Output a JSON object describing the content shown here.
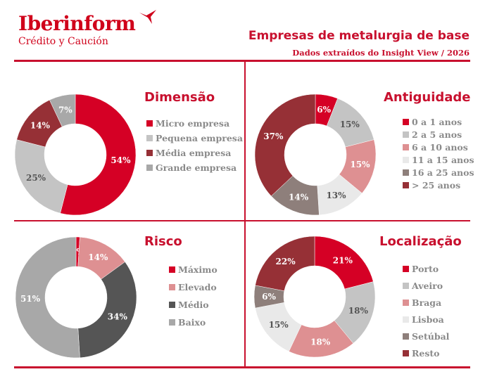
{
  "brand": {
    "name": "Iberinform",
    "subtitle": "Crédito y Caución",
    "color": "#d0021b"
  },
  "header": {
    "title": "Empresas de metalurgia de base",
    "subtitle": "Dados extraídos do Insight View / 2026"
  },
  "chart_data": [
    {
      "id": "dimensao",
      "type": "pie",
      "donut": true,
      "title": "Dimensão",
      "categories": [
        "Micro empresa",
        "Pequena empresa",
        "Média empresa",
        "Grande empresa"
      ],
      "values": [
        54,
        25,
        14,
        7
      ],
      "labels": [
        "54%",
        "25%",
        "14%",
        "7%"
      ],
      "colors": [
        "#d50025",
        "#c4c4c4",
        "#963036",
        "#a8a8a8"
      ],
      "label_colors": [
        "#ffffff",
        "#555555",
        "#ffffff",
        "#ffffff"
      ],
      "legend": "right"
    },
    {
      "id": "antiguidade",
      "type": "pie",
      "donut": true,
      "title": "Antiguidade",
      "categories": [
        "0 a 1 anos",
        "2 a 5 anos",
        "6 a 10 anos",
        "11 a 15 anos",
        "16 a 25 anos",
        "> 25 anos"
      ],
      "values": [
        6,
        15,
        15,
        13,
        14,
        37
      ],
      "labels": [
        "6%",
        "15%",
        "15%",
        "13%",
        "14%",
        "37%"
      ],
      "colors": [
        "#d50025",
        "#c4c4c4",
        "#de9092",
        "#e9e9e9",
        "#8e7f7b",
        "#963036"
      ],
      "label_colors": [
        "#ffffff",
        "#555555",
        "#ffffff",
        "#555555",
        "#ffffff",
        "#ffffff"
      ],
      "legend": "right"
    },
    {
      "id": "risco",
      "type": "pie",
      "donut": true,
      "title": "Risco",
      "categories": [
        "Máximo",
        "Elevado",
        "Médio",
        "Baixo"
      ],
      "values": [
        1,
        14,
        34,
        51
      ],
      "labels": [
        "1%",
        "14%",
        "34%",
        "51%"
      ],
      "colors": [
        "#d50025",
        "#de9092",
        "#555555",
        "#a8a8a8"
      ],
      "label_colors": [
        "#ffffff",
        "#ffffff",
        "#ffffff",
        "#ffffff"
      ],
      "legend": "right"
    },
    {
      "id": "localizacao",
      "type": "pie",
      "donut": true,
      "title": "Localização",
      "categories": [
        "Porto",
        "Aveiro",
        "Braga",
        "Lisboa",
        "Setúbal",
        "Resto"
      ],
      "values": [
        21,
        18,
        18,
        15,
        6,
        22
      ],
      "labels": [
        "21%",
        "18%",
        "18%",
        "15%",
        "6%",
        "22%"
      ],
      "colors": [
        "#d50025",
        "#c4c4c4",
        "#de9092",
        "#e9e9e9",
        "#8e7f7b",
        "#963036"
      ],
      "label_colors": [
        "#ffffff",
        "#555555",
        "#ffffff",
        "#555555",
        "#ffffff",
        "#ffffff"
      ],
      "legend": "right"
    }
  ]
}
